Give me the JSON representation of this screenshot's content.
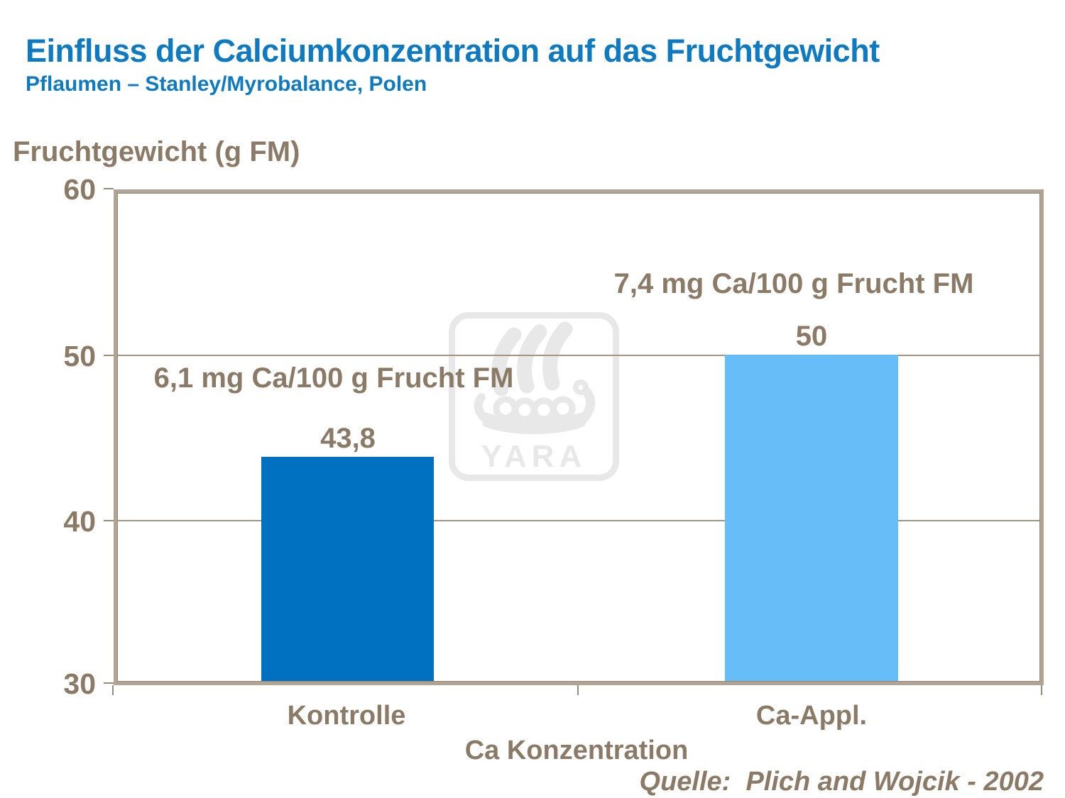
{
  "slide": {
    "title": "Einfluss der Calciumkonzentration auf das Fruchtgewicht",
    "subtitle": "Pflaumen – Stanley/Myrobalance, Polen",
    "source": "Quelle:  Plich and Wojcik - 2002"
  },
  "watermark": {
    "label": "YARA",
    "icon": "viking-ship-icon"
  },
  "chart_data": {
    "type": "bar",
    "title": "Einfluss der Calciumkonzentration auf das Fruchtgewicht",
    "categories": [
      "Kontrolle",
      "Ca-Appl."
    ],
    "values": [
      43.8,
      50
    ],
    "value_labels": [
      "43,8",
      "50"
    ],
    "bar_annotations": [
      "6,1 mg Ca/100 g Frucht FM",
      "7,4 mg Ca/100 g Frucht FM"
    ],
    "xlabel": "Ca Konzentration",
    "ylabel": "Fruchtgewicht (g FM)",
    "ylim": [
      30,
      60
    ],
    "yticks": [
      60,
      50,
      40,
      30
    ],
    "ytick_labels": [
      "60",
      "50",
      "40",
      "30"
    ],
    "grid": true,
    "legend": false,
    "bar_colors": [
      "#0070c0",
      "#66bdf7"
    ]
  },
  "colors": {
    "title_blue": "#0d7ac1",
    "text_brown": "#8a7a66",
    "bar_kontrolle": "#0070c0",
    "bar_ca_appl": "#66bdf7",
    "gridline": "#a2947f",
    "frame": "#b1a494",
    "watermark_gray": "#e8e8e8"
  }
}
